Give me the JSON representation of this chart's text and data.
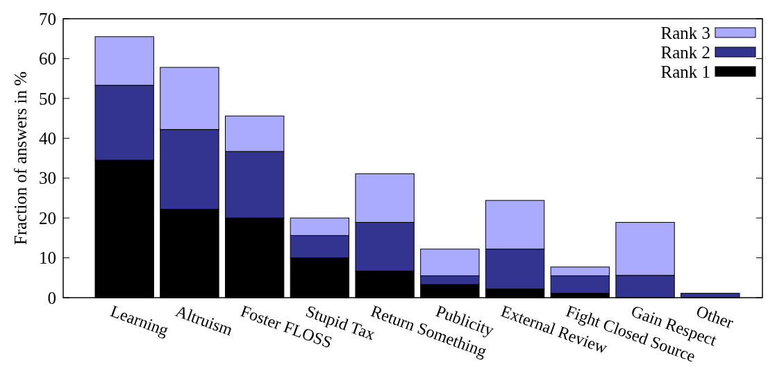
{
  "chart_data": {
    "type": "bar",
    "stacked": true,
    "ylabel": "Fraction of answers in %",
    "categories": [
      "Learning",
      "Altruism",
      "Foster FLOSS",
      "Stupid Tax",
      "Return Something",
      "Publicity",
      "External Review",
      "Fight Closed Source",
      "Gain Respect",
      "Other"
    ],
    "series": [
      {
        "name": "Rank 1",
        "color": "#000000",
        "values": [
          34.5,
          22.2,
          20.0,
          10.0,
          6.7,
          3.3,
          2.2,
          1.1,
          0,
          0
        ]
      },
      {
        "name": "Rank 2",
        "color": "#333390",
        "values": [
          18.8,
          20.0,
          16.7,
          5.6,
          12.2,
          2.2,
          10.0,
          4.4,
          5.6,
          1.1
        ]
      },
      {
        "name": "Rank 3",
        "color": "#aaaaff",
        "values": [
          12.2,
          15.6,
          8.9,
          4.4,
          12.2,
          6.7,
          12.2,
          2.2,
          13.3,
          0
        ]
      }
    ],
    "ylim": [
      0,
      70
    ],
    "yticks": [
      0,
      10,
      20,
      30,
      40,
      50,
      60,
      70
    ],
    "grid": false,
    "legend": "top right"
  }
}
